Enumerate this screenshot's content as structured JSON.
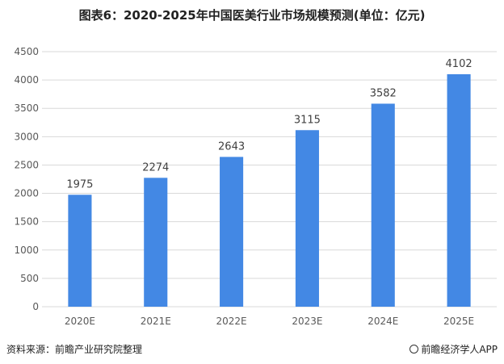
{
  "title": "图表6：2020-2025年中国医美行业市场规模预测(单位：亿元)",
  "source_text": "资料来源：前瞻产业研究院整理",
  "credit_text": "前瞻经济学人APP",
  "colors": {
    "bar": "#4388E4",
    "grid": "#D9D9D9",
    "axis_text": "#595959",
    "label_text": "#404040"
  },
  "chart_data": {
    "type": "bar",
    "categories": [
      "2020E",
      "2021E",
      "2022E",
      "2023E",
      "2024E",
      "2025E"
    ],
    "values": [
      1975,
      2274,
      2643,
      3115,
      3582,
      4102
    ],
    "title": "图表6：2020-2025年中国医美行业市场规模预测(单位：亿元)",
    "xlabel": "",
    "ylabel": "",
    "ylim": [
      0,
      4500
    ],
    "yticks": [
      0,
      500,
      1000,
      1500,
      2000,
      2500,
      3000,
      3500,
      4000,
      4500
    ],
    "grid": true,
    "legend": "none",
    "data_labels": true
  }
}
